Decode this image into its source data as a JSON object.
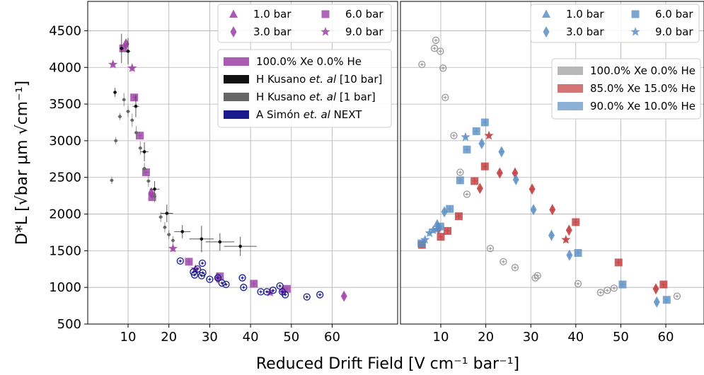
{
  "chart_data": {
    "type": "scatter",
    "xlabel": "Reduced Drift Field [V cm⁻¹ bar⁻¹]",
    "ylabel": "D*L [√bar μm √cm⁻¹]",
    "ylim": [
      500,
      4900
    ],
    "yticks": [
      500,
      1000,
      1500,
      2000,
      2500,
      3000,
      3500,
      4000,
      4500
    ],
    "grid": true,
    "colors": {
      "pure": "#9b3ea5",
      "kusano10": "#111111",
      "kusano1": "#666666",
      "simon": "#1a1a8c",
      "gray": "#9a9a9a",
      "red": "#c03a3a",
      "blue": "#5b8fc4"
    },
    "panels": [
      {
        "name": "left",
        "xlim": [
          0,
          65
        ],
        "xticks": [
          10,
          20,
          30,
          40,
          50,
          60
        ],
        "marker_legend": {
          "placement": "top-right",
          "entries": [
            {
              "label": "1.0 bar",
              "marker": "triangle"
            },
            {
              "label": "6.0 bar",
              "marker": "square"
            },
            {
              "label": "3.0 bar",
              "marker": "diamond"
            },
            {
              "label": "9.0 bar",
              "marker": "star"
            }
          ]
        },
        "color_legend": {
          "placement": "upper-right",
          "entries": [
            {
              "label": "100.0% Xe 0.0% He",
              "color_key": "pure"
            },
            {
              "label_parts": [
                "H Kusano ",
                "et. al",
                " [10 bar]"
              ],
              "color_key": "kusano10"
            },
            {
              "label_parts": [
                "H Kusano ",
                "et. al",
                " [1 bar]"
              ],
              "color_key": "kusano1"
            },
            {
              "label_parts": [
                "A Simón ",
                "et. al",
                " NEXT"
              ],
              "color_key": "simon"
            }
          ]
        },
        "series": [
          {
            "group": "100.0% Xe 0.0% He",
            "color_key": "pure",
            "marker": "square",
            "points": [
              {
                "x": 8.8,
                "y": 4260
              },
              {
                "x": 11.5,
                "y": 3590
              },
              {
                "x": 12.9,
                "y": 3070
              },
              {
                "x": 14.4,
                "y": 2570
              },
              {
                "x": 15.9,
                "y": 2230
              },
              {
                "x": 24.9,
                "y": 1350
              },
              {
                "x": 32.5,
                "y": 1150
              },
              {
                "x": 40.8,
                "y": 1050
              },
              {
                "x": 48.9,
                "y": 980
              }
            ]
          },
          {
            "group": "100.0% Xe 0.0% He",
            "color_key": "pure",
            "marker": "diamond",
            "points": [
              {
                "x": 9.5,
                "y": 4320
              },
              {
                "x": 15.7,
                "y": 2290
              },
              {
                "x": 31.9,
                "y": 1130
              },
              {
                "x": 47.9,
                "y": 950
              },
              {
                "x": 62.9,
                "y": 880
              }
            ]
          },
          {
            "group": "100.0% Xe 0.0% He",
            "color_key": "pure",
            "marker": "star",
            "points": [
              {
                "x": 6.3,
                "y": 4040
              },
              {
                "x": 11.0,
                "y": 3990
              },
              {
                "x": 21.0,
                "y": 1530
              },
              {
                "x": 26.5,
                "y": 1250
              },
              {
                "x": 44.8,
                "y": 930
              }
            ]
          },
          {
            "group": "H Kusano et. al [10 bar]",
            "color_key": "kusano10",
            "marker": "dot",
            "points": [
              {
                "x": 6.8,
                "y": 3660,
                "xerr": 0.4,
                "yerr": 60
              },
              {
                "x": 8.4,
                "y": 4260,
                "xerr": 0.5,
                "yerr": 200
              },
              {
                "x": 10.0,
                "y": 4220,
                "xerr": 0.6,
                "yerr": 180
              },
              {
                "x": 11.9,
                "y": 3470,
                "xerr": 0.8,
                "yerr": 150
              },
              {
                "x": 14.0,
                "y": 2850,
                "xerr": 1.0,
                "yerr": 130
              },
              {
                "x": 16.5,
                "y": 2340,
                "xerr": 1.2,
                "yerr": 110
              },
              {
                "x": 19.5,
                "y": 2010,
                "xerr": 1.5,
                "yerr": 120
              },
              {
                "x": 23.3,
                "y": 1760,
                "xerr": 2.0,
                "yerr": 90
              },
              {
                "x": 28.0,
                "y": 1660,
                "xerr": 3.0,
                "yerr": 180
              },
              {
                "x": 32.5,
                "y": 1620,
                "xerr": 3.5,
                "yerr": 120
              },
              {
                "x": 37.5,
                "y": 1560,
                "xerr": 4.0,
                "yerr": 130
              }
            ]
          },
          {
            "group": "H Kusano et. al [1 bar]",
            "color_key": "kusano1",
            "marker": "dot",
            "points": [
              {
                "x": 6.0,
                "y": 2460,
                "yerr": 50
              },
              {
                "x": 7.0,
                "y": 3000,
                "yerr": 50
              },
              {
                "x": 8.0,
                "y": 3330,
                "yerr": 50
              },
              {
                "x": 9.0,
                "y": 3560,
                "yerr": 90
              },
              {
                "x": 10.0,
                "y": 3400,
                "yerr": 80
              },
              {
                "x": 11.0,
                "y": 3280,
                "yerr": 90
              },
              {
                "x": 12.0,
                "y": 3110,
                "yerr": 90
              },
              {
                "x": 13.0,
                "y": 2900,
                "yerr": 90
              },
              {
                "x": 14.0,
                "y": 2620,
                "yerr": 80
              },
              {
                "x": 15.0,
                "y": 2450,
                "yerr": 80
              },
              {
                "x": 16.5,
                "y": 2240,
                "yerr": 80
              },
              {
                "x": 18.0,
                "y": 1960,
                "yerr": 70
              },
              {
                "x": 19.0,
                "y": 1820,
                "yerr": 70
              },
              {
                "x": 20.0,
                "y": 1720,
                "yerr": 60
              },
              {
                "x": 21.0,
                "y": 1640,
                "yerr": 60
              }
            ]
          },
          {
            "group": "A Simón et. al NEXT",
            "color_key": "simon",
            "marker": "open-circle",
            "points": [
              {
                "x": 22.8,
                "y": 1360
              },
              {
                "x": 26.0,
                "y": 1210
              },
              {
                "x": 26.3,
                "y": 1170
              },
              {
                "x": 27.0,
                "y": 1250
              },
              {
                "x": 28.0,
                "y": 1160
              },
              {
                "x": 28.2,
                "y": 1330
              },
              {
                "x": 28.3,
                "y": 1200
              },
              {
                "x": 30.0,
                "y": 1110
              },
              {
                "x": 32.0,
                "y": 1130
              },
              {
                "x": 33.0,
                "y": 1060
              },
              {
                "x": 34.0,
                "y": 1040
              },
              {
                "x": 38.0,
                "y": 1130
              },
              {
                "x": 38.3,
                "y": 1000
              },
              {
                "x": 42.5,
                "y": 940
              },
              {
                "x": 44.0,
                "y": 940
              },
              {
                "x": 45.5,
                "y": 960
              },
              {
                "x": 47.2,
                "y": 1020
              },
              {
                "x": 47.8,
                "y": 940
              },
              {
                "x": 48.5,
                "y": 900
              },
              {
                "x": 53.8,
                "y": 870
              },
              {
                "x": 57.0,
                "y": 900
              }
            ]
          }
        ]
      },
      {
        "name": "right",
        "xlim": [
          0,
          67
        ],
        "xticks": [
          10,
          20,
          30,
          40,
          50,
          60
        ],
        "marker_legend": {
          "placement": "top-right",
          "entries": [
            {
              "label": "1.0 bar",
              "marker": "triangle"
            },
            {
              "label": "6.0 bar",
              "marker": "square"
            },
            {
              "label": "3.0 bar",
              "marker": "diamond"
            },
            {
              "label": "9.0 bar",
              "marker": "star"
            }
          ]
        },
        "color_legend": {
          "placement": "upper-right",
          "entries": [
            {
              "label": "100.0% Xe 0.0% He",
              "color_key": "gray"
            },
            {
              "label": "85.0% Xe 15.0% He",
              "color_key": "red"
            },
            {
              "label": "90.0% Xe 10.0% He",
              "color_key": "blue"
            }
          ]
        },
        "series": [
          {
            "group": "100.0% Xe 0.0% He",
            "color_key": "gray",
            "marker": "open-circle",
            "points": [
              {
                "x": 5.8,
                "y": 4040
              },
              {
                "x": 8.6,
                "y": 4260
              },
              {
                "x": 8.9,
                "y": 4370
              },
              {
                "x": 9.9,
                "y": 4220
              },
              {
                "x": 10.5,
                "y": 3990
              },
              {
                "x": 11.0,
                "y": 3590
              },
              {
                "x": 12.9,
                "y": 3070
              },
              {
                "x": 14.3,
                "y": 2570
              },
              {
                "x": 15.8,
                "y": 2270
              },
              {
                "x": 21.0,
                "y": 1530
              },
              {
                "x": 23.9,
                "y": 1350
              },
              {
                "x": 26.5,
                "y": 1270
              },
              {
                "x": 31.0,
                "y": 1130
              },
              {
                "x": 31.5,
                "y": 1160
              },
              {
                "x": 40.5,
                "y": 1050
              },
              {
                "x": 45.5,
                "y": 930
              },
              {
                "x": 47.0,
                "y": 960
              },
              {
                "x": 48.5,
                "y": 990
              },
              {
                "x": 62.5,
                "y": 880
              }
            ]
          },
          {
            "group": "85.0% Xe 15.0% He",
            "color_key": "red",
            "marker": "square",
            "points": [
              {
                "x": 5.8,
                "y": 1580
              },
              {
                "x": 10.0,
                "y": 1690
              },
              {
                "x": 11.5,
                "y": 1770
              },
              {
                "x": 14.0,
                "y": 1970
              },
              {
                "x": 17.5,
                "y": 2450
              },
              {
                "x": 19.8,
                "y": 2650
              },
              {
                "x": 40.0,
                "y": 1890
              },
              {
                "x": 49.5,
                "y": 1340
              },
              {
                "x": 59.5,
                "y": 1040
              }
            ]
          },
          {
            "group": "85.0% Xe 15.0% He",
            "color_key": "red",
            "marker": "diamond",
            "points": [
              {
                "x": 9.5,
                "y": 1800
              },
              {
                "x": 18.7,
                "y": 2350
              },
              {
                "x": 23.1,
                "y": 2560
              },
              {
                "x": 26.5,
                "y": 2560
              },
              {
                "x": 30.3,
                "y": 2340
              },
              {
                "x": 34.8,
                "y": 2060
              },
              {
                "x": 38.5,
                "y": 1780
              },
              {
                "x": 57.8,
                "y": 980
              }
            ]
          },
          {
            "group": "85.0% Xe 15.0% He",
            "color_key": "red",
            "marker": "star",
            "points": [
              {
                "x": 20.7,
                "y": 3070
              },
              {
                "x": 37.8,
                "y": 1650
              }
            ]
          },
          {
            "group": "90.0% Xe 10.0% He",
            "color_key": "blue",
            "marker": "square",
            "points": [
              {
                "x": 5.7,
                "y": 1600
              },
              {
                "x": 9.9,
                "y": 1830
              },
              {
                "x": 12.0,
                "y": 2070
              },
              {
                "x": 14.3,
                "y": 2460
              },
              {
                "x": 15.8,
                "y": 2880
              },
              {
                "x": 17.9,
                "y": 3130
              },
              {
                "x": 19.8,
                "y": 3250
              },
              {
                "x": 40.5,
                "y": 1470
              },
              {
                "x": 50.4,
                "y": 1040
              },
              {
                "x": 60.2,
                "y": 830
              }
            ]
          },
          {
            "group": "90.0% Xe 10.0% He",
            "color_key": "blue",
            "marker": "diamond",
            "points": [
              {
                "x": 10.8,
                "y": 2030
              },
              {
                "x": 19.1,
                "y": 2960
              },
              {
                "x": 23.5,
                "y": 2850
              },
              {
                "x": 26.7,
                "y": 2470
              },
              {
                "x": 30.6,
                "y": 2060
              },
              {
                "x": 34.6,
                "y": 1710
              },
              {
                "x": 38.6,
                "y": 1440
              },
              {
                "x": 58.0,
                "y": 800
              }
            ]
          },
          {
            "group": "90.0% Xe 10.0% He",
            "color_key": "blue",
            "marker": "star",
            "points": [
              {
                "x": 6.5,
                "y": 1650
              },
              {
                "x": 7.5,
                "y": 1740
              },
              {
                "x": 8.3,
                "y": 1780
              },
              {
                "x": 9.1,
                "y": 1790
              },
              {
                "x": 15.5,
                "y": 3050
              }
            ]
          },
          {
            "group": "90.0% Xe 10.0% He",
            "color_key": "blue",
            "marker": "triangle",
            "points": [
              {
                "x": 9.2,
                "y": 1870
              }
            ]
          }
        ]
      }
    ]
  }
}
